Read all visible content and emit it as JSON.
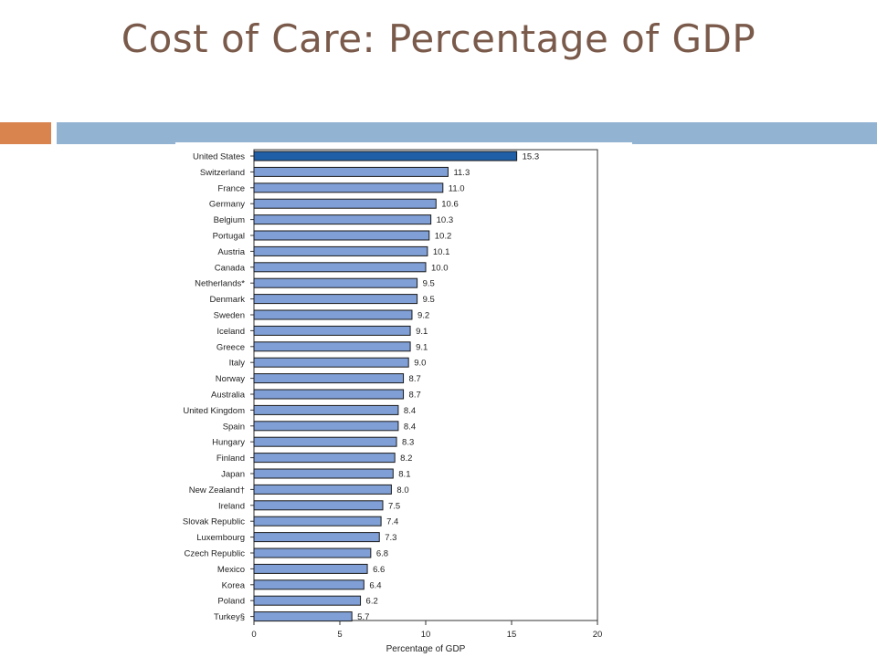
{
  "slide": {
    "title": "Cost of Care: Percentage of GDP"
  },
  "colors": {
    "accent_orange": "#d9844f",
    "accent_blue": "#93b3d3",
    "bar_highlight": "#1e5fa8",
    "bar_default": "#7f9fd6",
    "title_text": "#7a5a4a"
  },
  "chart_data": {
    "type": "bar",
    "orientation": "horizontal",
    "categories": [
      "United States",
      "Switzerland",
      "France",
      "Germany",
      "Belgium",
      "Portugal",
      "Austria",
      "Canada",
      "Netherlands*",
      "Denmark",
      "Sweden",
      "Iceland",
      "Greece",
      "Italy",
      "Norway",
      "Australia",
      "United Kingdom",
      "Spain",
      "Hungary",
      "Finland",
      "Japan",
      "New Zealand†",
      "Ireland",
      "Slovak Republic",
      "Luxembourg",
      "Czech Republic",
      "Mexico",
      "Korea",
      "Poland",
      "Turkey§"
    ],
    "values": [
      15.3,
      11.3,
      11.0,
      10.6,
      10.3,
      10.2,
      10.1,
      10.0,
      9.5,
      9.5,
      9.2,
      9.1,
      9.1,
      9.0,
      8.7,
      8.7,
      8.4,
      8.4,
      8.3,
      8.2,
      8.1,
      8.0,
      7.5,
      7.4,
      7.3,
      6.8,
      6.6,
      6.4,
      6.2,
      5.7
    ],
    "value_labels": [
      "15.3",
      "11.3",
      "11.0",
      "10.6",
      "10.3",
      "10.2",
      "10.1",
      "10.0",
      "9.5",
      "9.5",
      "9.2",
      "9.1",
      "9.1",
      "9.0",
      "8.7",
      "8.7",
      "8.4",
      "8.4",
      "8.3",
      "8.2",
      "8.1",
      "8.0",
      "7.5",
      "7.4",
      "7.3",
      "6.8",
      "6.6",
      "6.4",
      "6.2",
      "5.7"
    ],
    "highlight_index": 0,
    "xlabel": "Percentage of GDP",
    "xlim": [
      0,
      20
    ],
    "xticks": [
      0,
      5,
      10,
      15,
      20
    ],
    "xtick_labels": [
      "0",
      "5",
      "10",
      "15",
      "20"
    ],
    "grid": false,
    "legend": "none"
  }
}
